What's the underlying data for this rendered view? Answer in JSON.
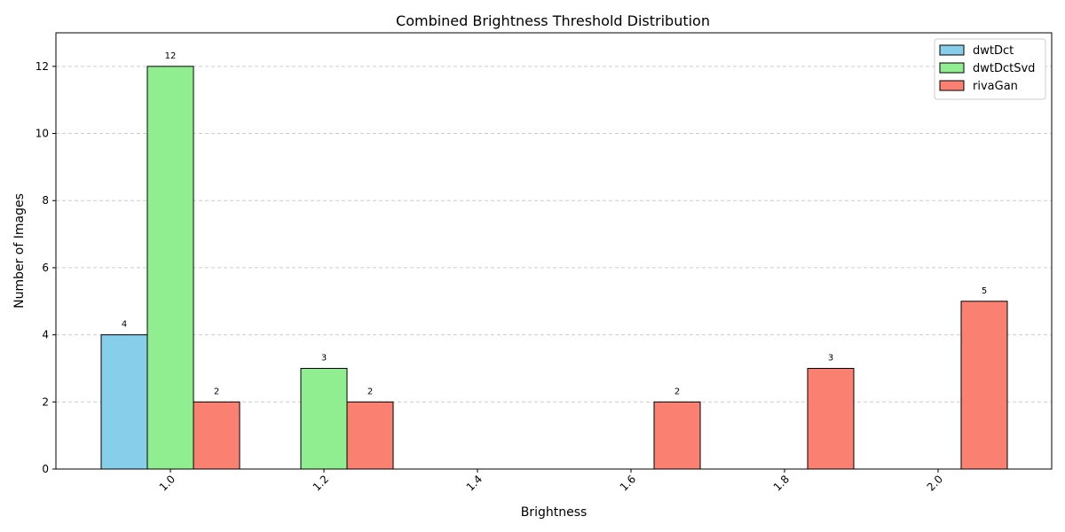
{
  "chart_data": {
    "type": "bar",
    "title": "Combined Brightness Threshold Distribution",
    "xlabel": "Brightness",
    "ylabel": "Number of Images",
    "categories": [
      "1.0",
      "1.2",
      "1.4",
      "1.6",
      "1.8",
      "2.0"
    ],
    "series": [
      {
        "name": "dwtDct",
        "color": "#87ceeb",
        "values": [
          4,
          0,
          0,
          0,
          0,
          0
        ]
      },
      {
        "name": "dwtDctSvd",
        "color": "#90ee90",
        "values": [
          12,
          3,
          0,
          0,
          0,
          0
        ]
      },
      {
        "name": "rivaGan",
        "color": "#fa8072",
        "values": [
          2,
          2,
          0,
          2,
          3,
          5
        ]
      }
    ],
    "ylim": [
      0,
      13
    ],
    "yticks": [
      0,
      2,
      4,
      6,
      8,
      10,
      12
    ],
    "grid": "y-dashed",
    "legend_position": "top-right",
    "show_value_labels_for_nonzero": true
  }
}
